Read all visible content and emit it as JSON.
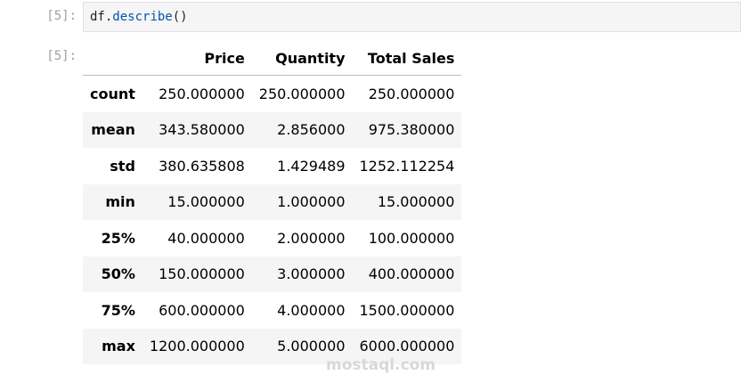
{
  "input_cell": {
    "prompt": "[5]:",
    "code_obj": "df",
    "code_dot": ".",
    "code_fn": "describe",
    "code_args": "()"
  },
  "output_cell": {
    "prompt": "[5]:"
  },
  "table": {
    "columns": [
      "",
      "Price",
      "Quantity",
      "Total Sales"
    ],
    "rows": [
      {
        "label": "count",
        "values": [
          "250.000000",
          "250.000000",
          "250.000000"
        ]
      },
      {
        "label": "mean",
        "values": [
          "343.580000",
          "2.856000",
          "975.380000"
        ]
      },
      {
        "label": "std",
        "values": [
          "380.635808",
          "1.429489",
          "1252.112254"
        ]
      },
      {
        "label": "min",
        "values": [
          "15.000000",
          "1.000000",
          "15.000000"
        ]
      },
      {
        "label": "25%",
        "values": [
          "40.000000",
          "2.000000",
          "100.000000"
        ]
      },
      {
        "label": "50%",
        "values": [
          "150.000000",
          "3.000000",
          "400.000000"
        ]
      },
      {
        "label": "75%",
        "values": [
          "600.000000",
          "4.000000",
          "1500.000000"
        ]
      },
      {
        "label": "max",
        "values": [
          "1200.000000",
          "5.000000",
          "6000.000000"
        ]
      }
    ]
  },
  "watermark": "mostaql.com"
}
